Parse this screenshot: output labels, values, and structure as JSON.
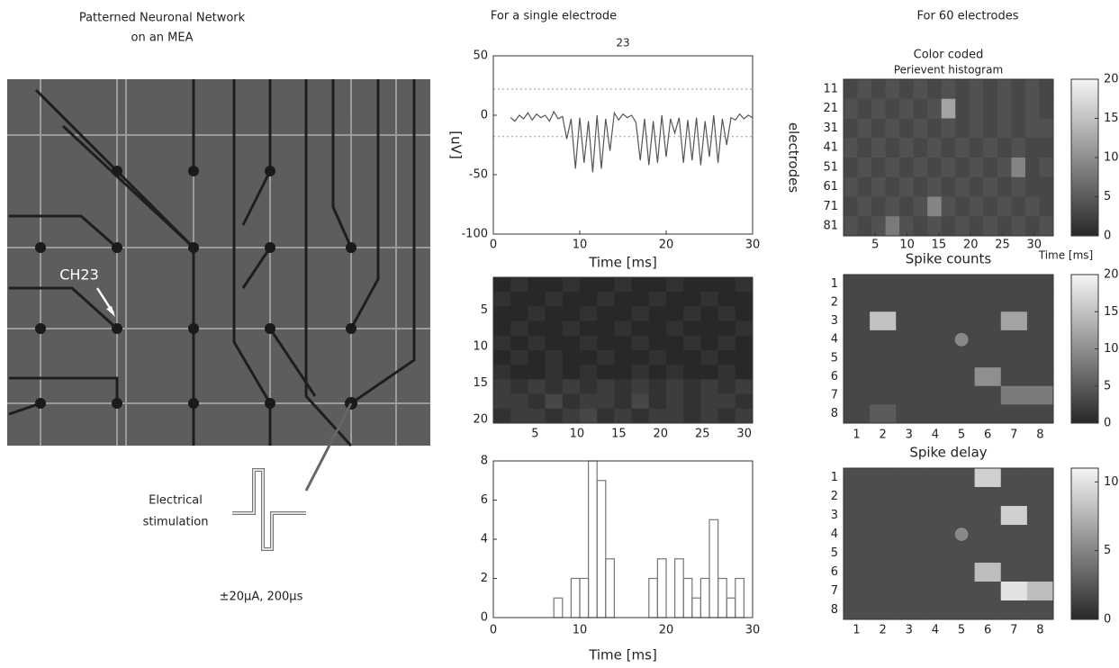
{
  "panel_titles": {
    "left": [
      "Patterned Neuronal Network",
      "on an MEA"
    ],
    "middle": "For a single electrode",
    "right": "For 60 electrodes"
  },
  "photo": {
    "channel_label": "CH23",
    "stimulation_label": [
      "Electrical",
      "stimulation"
    ],
    "stimulation_params": "±20μA, 200μs"
  },
  "chart_data": [
    {
      "type": "line",
      "title": "23",
      "ylabel": "[uV]",
      "xlabel": "Time [ms]",
      "xlim": [
        0,
        30
      ],
      "ylim": [
        -100,
        50
      ],
      "xticks": [
        0,
        10,
        20,
        30
      ],
      "yticks": [
        -100,
        -50,
        0,
        50
      ],
      "thresholds": [
        22,
        -18
      ],
      "x": [
        2,
        2.5,
        3,
        3.5,
        4,
        4.5,
        5,
        5.5,
        6,
        6.5,
        7,
        7.5,
        8,
        8.5,
        9,
        9.5,
        10,
        10.5,
        11,
        11.5,
        12,
        12.5,
        13,
        13.5,
        14,
        14.5,
        15,
        15.5,
        16,
        16.5,
        17,
        17.5,
        18,
        18.5,
        19,
        19.5,
        20,
        20.5,
        21,
        21.5,
        22,
        22.5,
        23,
        23.5,
        24,
        24.5,
        25,
        25.5,
        26,
        26.5,
        27,
        27.5,
        28,
        28.5,
        29,
        29.5,
        30
      ],
      "values": [
        -2,
        -5,
        0,
        -3,
        2,
        -4,
        1,
        -2,
        0,
        -5,
        3,
        -3,
        -1,
        -20,
        -3,
        -45,
        -2,
        -40,
        -5,
        -48,
        0,
        -45,
        -3,
        -30,
        2,
        -4,
        1,
        -2,
        0,
        -6,
        -38,
        -3,
        -42,
        -5,
        -40,
        0,
        -35,
        -3,
        -15,
        -2,
        -40,
        -4,
        -38,
        -2,
        -42,
        -5,
        -35,
        0,
        -40,
        -3,
        -25,
        -2,
        -4,
        1,
        -3,
        0,
        -2
      ],
      "color": "#555555"
    },
    {
      "type": "heatmap",
      "xlim": [
        0,
        31
      ],
      "ylim": [
        0.5,
        20.5
      ],
      "xticks": [
        5,
        10,
        15,
        20,
        25,
        30
      ],
      "yticks": [
        5,
        10,
        15,
        20
      ],
      "clim": [
        0,
        20
      ],
      "values": [
        [
          0,
          1,
          0,
          0,
          1,
          0,
          0,
          1,
          0,
          0,
          1,
          0,
          0,
          0,
          1
        ],
        [
          1,
          0,
          0,
          1,
          0,
          0,
          1,
          0,
          0,
          1,
          0,
          0,
          1,
          0,
          0
        ],
        [
          0,
          0,
          1,
          0,
          0,
          1,
          0,
          0,
          1,
          0,
          0,
          1,
          0,
          1,
          0
        ],
        [
          0,
          1,
          0,
          0,
          1,
          0,
          0,
          1,
          0,
          0,
          1,
          0,
          0,
          0,
          1
        ],
        [
          1,
          0,
          1,
          0,
          0,
          1,
          0,
          0,
          1,
          0,
          0,
          1,
          0,
          1,
          0
        ],
        [
          0,
          1,
          0,
          1,
          0,
          0,
          1,
          0,
          0,
          1,
          0,
          0,
          1,
          0,
          0
        ],
        [
          1,
          0,
          0,
          1,
          0,
          1,
          0,
          0,
          1,
          0,
          1,
          0,
          0,
          1,
          0
        ],
        [
          2,
          1,
          2,
          1,
          2,
          1,
          2,
          1,
          2,
          1,
          2,
          1,
          2,
          1,
          2
        ],
        [
          2,
          2,
          1,
          3,
          1,
          2,
          2,
          1,
          3,
          1,
          2,
          1,
          2,
          2,
          1
        ],
        [
          1,
          2,
          2,
          1,
          2,
          3,
          1,
          2,
          1,
          2,
          2,
          1,
          2,
          1,
          2
        ]
      ]
    },
    {
      "type": "histogram",
      "xlabel": "Time [ms]",
      "xlim": [
        0,
        30
      ],
      "ylim": [
        0,
        8
      ],
      "xticks": [
        0,
        10,
        20,
        30
      ],
      "yticks": [
        0,
        2,
        4,
        6,
        8
      ],
      "color": "#777777",
      "bins": [
        0,
        1,
        2,
        3,
        4,
        5,
        6,
        7,
        8,
        9,
        10,
        11,
        12,
        13,
        14,
        15,
        16,
        17,
        18,
        19,
        20,
        21,
        22,
        23,
        24,
        25,
        26,
        27,
        28,
        29,
        30
      ],
      "values": [
        0,
        0,
        0,
        0,
        0,
        0,
        0,
        1,
        0,
        2,
        2,
        8,
        7,
        3,
        0,
        0,
        0,
        0,
        2,
        3,
        0,
        3,
        2,
        1,
        2,
        5,
        2,
        1,
        2,
        0
      ]
    },
    {
      "type": "heatmap",
      "title": "Color coded",
      "subtitle": "Perievent histogram",
      "ylabel": "electrodes",
      "xlabel": "Time [ms]",
      "xlim": [
        0,
        33
      ],
      "xticks": [
        5,
        10,
        15,
        20,
        25,
        30
      ],
      "y_categories": [
        "11",
        "21",
        "31",
        "41",
        "51",
        "61",
        "71",
        "81"
      ],
      "clim": [
        0,
        20
      ],
      "cticks": [
        0,
        5,
        10,
        15,
        20
      ],
      "values": [
        [
          3,
          4,
          3,
          4,
          3,
          4,
          3,
          4,
          3,
          4,
          3,
          4,
          3,
          4,
          3
        ],
        [
          4,
          3,
          4,
          3,
          4,
          3,
          4,
          12,
          3,
          4,
          3,
          4,
          3,
          4,
          3
        ],
        [
          3,
          4,
          3,
          4,
          3,
          4,
          3,
          4,
          3,
          4,
          3,
          4,
          3,
          4,
          4
        ],
        [
          4,
          3,
          4,
          3,
          4,
          3,
          4,
          3,
          4,
          3,
          4,
          3,
          4,
          3,
          3
        ],
        [
          3,
          4,
          3,
          4,
          3,
          4,
          3,
          4,
          3,
          4,
          3,
          4,
          9,
          3,
          4
        ],
        [
          4,
          3,
          4,
          3,
          4,
          3,
          4,
          3,
          4,
          3,
          4,
          3,
          4,
          3,
          3
        ],
        [
          3,
          4,
          3,
          4,
          3,
          4,
          9,
          4,
          3,
          4,
          3,
          4,
          3,
          4,
          3
        ],
        [
          4,
          3,
          4,
          8,
          4,
          3,
          4,
          3,
          4,
          3,
          4,
          3,
          4,
          3,
          4
        ]
      ]
    },
    {
      "type": "heatmap",
      "title": "Spike counts",
      "x_categories": [
        "1",
        "2",
        "3",
        "4",
        "5",
        "6",
        "7",
        "8"
      ],
      "y_categories": [
        "1",
        "2",
        "3",
        "4",
        "5",
        "6",
        "7",
        "8"
      ],
      "clim": [
        0,
        20
      ],
      "cticks": [
        0,
        5,
        10,
        15,
        20
      ],
      "values": [
        [
          3,
          3,
          3,
          3,
          3,
          3,
          3,
          3
        ],
        [
          3,
          3,
          3,
          3,
          3,
          3,
          3,
          3
        ],
        [
          3,
          15,
          3,
          3,
          3,
          3,
          12,
          3
        ],
        [
          3,
          3,
          3,
          3,
          3,
          3,
          3,
          3
        ],
        [
          3,
          3,
          3,
          3,
          3,
          3,
          3,
          3
        ],
        [
          3,
          3,
          3,
          3,
          3,
          10,
          3,
          3
        ],
        [
          3,
          3,
          3,
          3,
          3,
          3,
          8,
          8
        ],
        [
          3,
          5,
          3,
          3,
          3,
          3,
          3,
          3
        ]
      ]
    },
    {
      "type": "heatmap",
      "title": "Spike delay",
      "x_categories": [
        "1",
        "2",
        "3",
        "4",
        "5",
        "6",
        "7",
        "8"
      ],
      "y_categories": [
        "1",
        "2",
        "3",
        "4",
        "5",
        "6",
        "7",
        "8"
      ],
      "clim": [
        0,
        11
      ],
      "cticks": [
        0,
        5,
        10
      ],
      "values": [
        [
          2,
          2,
          2,
          2,
          2,
          9,
          2,
          2
        ],
        [
          2,
          2,
          2,
          2,
          2,
          2,
          2,
          2
        ],
        [
          2,
          2,
          2,
          2,
          2,
          2,
          9,
          2
        ],
        [
          2,
          2,
          2,
          2,
          2,
          2,
          2,
          2
        ],
        [
          2,
          2,
          2,
          2,
          2,
          2,
          2,
          2
        ],
        [
          2,
          2,
          2,
          2,
          2,
          8,
          2,
          2
        ],
        [
          2,
          2,
          2,
          2,
          2,
          2,
          10,
          8
        ],
        [
          2,
          2,
          2,
          2,
          2,
          2,
          2,
          2
        ]
      ]
    }
  ]
}
